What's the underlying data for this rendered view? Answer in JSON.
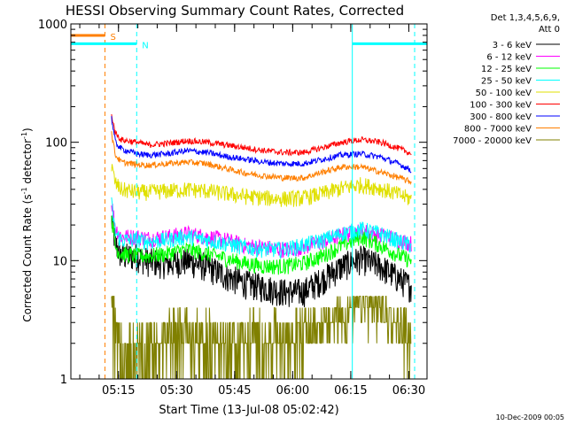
{
  "chart_data": {
    "type": "line",
    "title": "HESSI Observing Summary Count Rates, Corrected",
    "xlabel": "Start Time (13-Jul-08 05:02:42)",
    "ylabel_main": "Corrected Count Rate (s",
    "ylabel_sup1": "-1",
    "ylabel_mid": " detector",
    "ylabel_sup2": "-1",
    "ylabel_end": ")",
    "yscale": "log",
    "ylim": [
      1,
      1000
    ],
    "xlim_minutes": [
      0,
      92
    ],
    "x_ticks": [
      "05:15",
      "05:30",
      "05:45",
      "06:00",
      "06:15",
      "06:30"
    ],
    "x_tick_minutes": [
      12.3,
      27.3,
      42.3,
      57.3,
      72.3,
      87.3
    ],
    "y_ticks": [
      "1",
      "10",
      "100",
      "1000"
    ],
    "y_tick_values": [
      1,
      10,
      100,
      1000
    ],
    "legend_header": [
      "Det 1,3,4,5,6,9,",
      "Att 0"
    ],
    "legend_position": "right",
    "timestamp": "10-Dec-2009 00:05",
    "flags": [
      {
        "label": "S",
        "color": "#ff7f00",
        "y": 800,
        "segments": [
          [
            0,
            8.8
          ]
        ],
        "dashed_at": [
          8.8
        ]
      },
      {
        "label": "N",
        "color": "#00ffff",
        "y": 680,
        "segments": [
          [
            0,
            17
          ],
          [
            72.7,
            92
          ]
        ],
        "dashed_at": [
          17,
          88.8
        ],
        "solid_at": [
          72.7
        ]
      }
    ],
    "series": [
      {
        "name": "3 - 6 keV",
        "color": "#000000",
        "points": [
          [
            10.5,
            22
          ],
          [
            11.5,
            14
          ],
          [
            13,
            11
          ],
          [
            17,
            11
          ],
          [
            20,
            10
          ],
          [
            25,
            9.5
          ],
          [
            30,
            10
          ],
          [
            35,
            9
          ],
          [
            40,
            7.5
          ],
          [
            45,
            6.5
          ],
          [
            50,
            6
          ],
          [
            55,
            5.5
          ],
          [
            60,
            5.5
          ],
          [
            65,
            7
          ],
          [
            70,
            9
          ],
          [
            75,
            10.5
          ],
          [
            80,
            9
          ],
          [
            85,
            7
          ],
          [
            88,
            6
          ]
        ]
      },
      {
        "name": "6 - 12 keV",
        "color": "#ff00ff",
        "points": [
          [
            10.5,
            32
          ],
          [
            11.5,
            19
          ],
          [
            13,
            16
          ],
          [
            17,
            16
          ],
          [
            20,
            15.5
          ],
          [
            25,
            16
          ],
          [
            30,
            17
          ],
          [
            35,
            16
          ],
          [
            40,
            15
          ],
          [
            45,
            13.5
          ],
          [
            50,
            13
          ],
          [
            55,
            12.5
          ],
          [
            60,
            13
          ],
          [
            65,
            14.5
          ],
          [
            70,
            16.5
          ],
          [
            75,
            18
          ],
          [
            80,
            16.5
          ],
          [
            85,
            15
          ],
          [
            88,
            14
          ]
        ]
      },
      {
        "name": "12 - 25 keV",
        "color": "#00ff00",
        "points": [
          [
            10.5,
            24
          ],
          [
            11.5,
            13
          ],
          [
            13,
            11.5
          ],
          [
            17,
            11
          ],
          [
            20,
            11
          ],
          [
            25,
            11.5
          ],
          [
            30,
            12.5
          ],
          [
            35,
            11.5
          ],
          [
            40,
            10.5
          ],
          [
            45,
            9.5
          ],
          [
            50,
            9
          ],
          [
            55,
            9
          ],
          [
            60,
            9.5
          ],
          [
            65,
            11
          ],
          [
            70,
            13.5
          ],
          [
            75,
            16
          ],
          [
            80,
            13.5
          ],
          [
            85,
            11
          ],
          [
            88,
            10
          ]
        ]
      },
      {
        "name": "25 - 50 keV",
        "color": "#00ffff",
        "points": [
          [
            10.5,
            30
          ],
          [
            11.5,
            17
          ],
          [
            13,
            15
          ],
          [
            17,
            15
          ],
          [
            20,
            14.5
          ],
          [
            25,
            15
          ],
          [
            30,
            16
          ],
          [
            35,
            15
          ],
          [
            40,
            14
          ],
          [
            45,
            13
          ],
          [
            50,
            12.5
          ],
          [
            55,
            12.5
          ],
          [
            60,
            13.5
          ],
          [
            65,
            15
          ],
          [
            70,
            17
          ],
          [
            75,
            18.5
          ],
          [
            80,
            17
          ],
          [
            85,
            14.5
          ],
          [
            88,
            13.5
          ]
        ]
      },
      {
        "name": "50 - 100 keV",
        "color": "#e0e000",
        "points": [
          [
            10.5,
            62
          ],
          [
            11.5,
            45
          ],
          [
            13,
            40
          ],
          [
            17,
            38
          ],
          [
            20,
            38
          ],
          [
            25,
            39
          ],
          [
            30,
            40
          ],
          [
            35,
            39
          ],
          [
            40,
            37
          ],
          [
            45,
            35
          ],
          [
            50,
            34
          ],
          [
            55,
            33.5
          ],
          [
            60,
            34
          ],
          [
            65,
            37
          ],
          [
            70,
            41
          ],
          [
            75,
            44
          ],
          [
            80,
            41
          ],
          [
            85,
            36
          ],
          [
            88,
            33
          ]
        ]
      },
      {
        "name": "100 - 300 keV",
        "color": "#ff0000",
        "points": [
          [
            10.5,
            170
          ],
          [
            11.5,
            120
          ],
          [
            13,
            105
          ],
          [
            17,
            100
          ],
          [
            20,
            95
          ],
          [
            25,
            98
          ],
          [
            30,
            103
          ],
          [
            35,
            100
          ],
          [
            40,
            95
          ],
          [
            45,
            90
          ],
          [
            50,
            85
          ],
          [
            55,
            82
          ],
          [
            60,
            82
          ],
          [
            65,
            90
          ],
          [
            70,
            100
          ],
          [
            75,
            105
          ],
          [
            80,
            100
          ],
          [
            85,
            88
          ],
          [
            88,
            80
          ]
        ]
      },
      {
        "name": "300 - 800 keV",
        "color": "#0000ff",
        "points": [
          [
            10.5,
            160
          ],
          [
            11.5,
            100
          ],
          [
            13,
            88
          ],
          [
            17,
            80
          ],
          [
            20,
            78
          ],
          [
            25,
            80
          ],
          [
            30,
            85
          ],
          [
            35,
            82
          ],
          [
            40,
            76
          ],
          [
            45,
            72
          ],
          [
            50,
            68
          ],
          [
            55,
            66
          ],
          [
            60,
            66
          ],
          [
            65,
            72
          ],
          [
            70,
            78
          ],
          [
            75,
            80
          ],
          [
            80,
            75
          ],
          [
            85,
            65
          ],
          [
            88,
            58
          ]
        ]
      },
      {
        "name": "800 - 7000 keV",
        "color": "#ff7f00",
        "points": [
          [
            10.5,
            120
          ],
          [
            11.5,
            78
          ],
          [
            13,
            68
          ],
          [
            17,
            65
          ],
          [
            20,
            64
          ],
          [
            25,
            66
          ],
          [
            30,
            68
          ],
          [
            35,
            66
          ],
          [
            40,
            60
          ],
          [
            45,
            55
          ],
          [
            50,
            52
          ],
          [
            55,
            50
          ],
          [
            60,
            50
          ],
          [
            65,
            56
          ],
          [
            70,
            62
          ],
          [
            75,
            62
          ],
          [
            80,
            56
          ],
          [
            85,
            50
          ],
          [
            88,
            46
          ]
        ]
      },
      {
        "name": "7000 - 20000 keV",
        "color": "#808000",
        "points": [
          [
            10.5,
            7
          ],
          [
            11.5,
            3.5
          ],
          [
            13,
            2
          ],
          [
            17,
            2
          ],
          [
            21,
            2.2
          ],
          [
            25,
            2.5
          ],
          [
            30,
            3
          ],
          [
            35,
            2.5
          ],
          [
            40,
            2.3
          ],
          [
            45,
            2.5
          ],
          [
            50,
            2.7
          ],
          [
            55,
            2.4
          ],
          [
            60,
            2.6
          ],
          [
            65,
            2.8
          ],
          [
            70,
            3.5
          ],
          [
            75,
            4.5
          ],
          [
            80,
            4
          ],
          [
            85,
            2.8
          ],
          [
            88,
            2.2
          ]
        ]
      }
    ]
  }
}
